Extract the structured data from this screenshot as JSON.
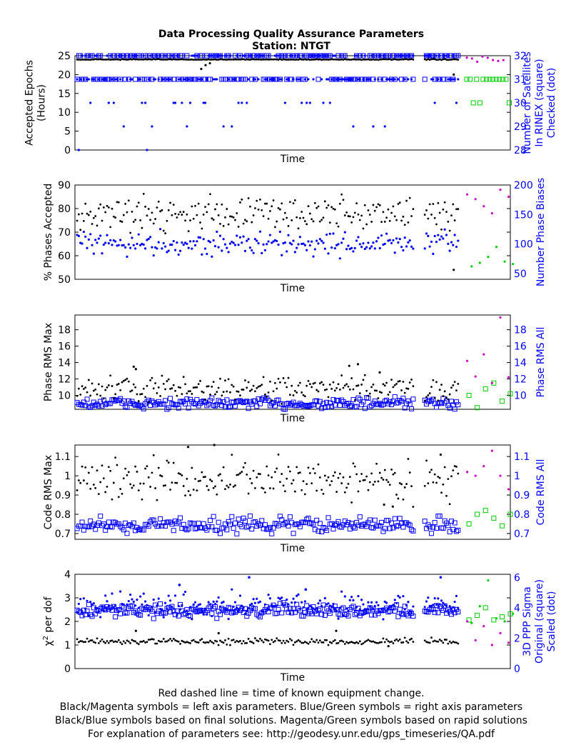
{
  "title": "Data Processing Quality Assurance Parameters",
  "subtitle": "Station: NTGT",
  "footer": [
    "Red dashed line = time of known equipment change.",
    "Black/Magenta symbols = left axis parameters. Blue/Green symbols = right axis parameters",
    "Black/Blue symbols based on final solutions.  Magenta/Green symbols based on rapid solutions",
    "For explanation of parameters see: http://geodesy.unr.edu/gps_timeseries/QA.pdf"
  ],
  "colors": {
    "final_left": "#000000",
    "final_right": "#0000ff",
    "rapid_left": "#cc00cc",
    "rapid_right": "#00cc00"
  },
  "chart_data": [
    {
      "type": "scatter",
      "xlabel": "Time",
      "ylabel": [
        "Accepted Epochs",
        "(Hours)"
      ],
      "ylabel_right": [
        "Number of Satellites",
        "In RINEX (square)",
        "Checked (dot)"
      ],
      "ylim": [
        0,
        25
      ],
      "yticks": [
        0,
        5,
        10,
        15,
        20,
        25
      ],
      "ylim_right": [
        28,
        32
      ],
      "yticks_right": [
        28,
        29,
        30,
        31,
        32
      ],
      "final_end": 0.885,
      "gap": [
        0.78,
        0.8
      ],
      "left": {
        "typical": 24,
        "spread": 0.05,
        "outliers": [
          [
            0.29,
            21.5
          ],
          [
            0.3,
            22.5
          ],
          [
            0.31,
            23.0
          ],
          [
            0.87,
            20.0
          ]
        ]
      },
      "rapid_left": {
        "typical": 24,
        "spread": 0.4
      },
      "right_square": {
        "levels": [
          31,
          32
        ],
        "weights": [
          0.45,
          0.55
        ]
      },
      "right_dot": {
        "levels": [
          28,
          29,
          30,
          31,
          32
        ],
        "weights": [
          0.01,
          0.03,
          0.1,
          0.46,
          0.4
        ]
      },
      "rapid_right_square": {
        "levels": [
          30,
          31
        ],
        "weights": [
          0.25,
          0.75
        ]
      }
    },
    {
      "type": "scatter",
      "xlabel": "Time",
      "ylabel": [
        "% Phases Accepted"
      ],
      "ylabel_right": [
        "Number Phase Biases"
      ],
      "ylim": [
        50,
        90
      ],
      "yticks": [
        50,
        60,
        70,
        80,
        90
      ],
      "ylim_right": [
        40,
        200
      ],
      "yticks_right": [
        50,
        100,
        150,
        200
      ],
      "final_end": 0.885,
      "gap": [
        0.78,
        0.8
      ],
      "left": {
        "typical": 78,
        "spread": 3.5,
        "outliers": [
          [
            0.87,
            54
          ]
        ]
      },
      "rapid_left": {
        "values": [
          86,
          84,
          81,
          78,
          88,
          85
        ]
      },
      "right_dot": {
        "typical": 100,
        "spread": 10
      },
      "rapid_right": {
        "values": [
          62,
          68,
          78,
          95,
          70,
          66
        ]
      }
    },
    {
      "type": "scatter",
      "xlabel": "Time",
      "ylabel": [
        "Phase RMS Max"
      ],
      "ylabel_right": [
        "Phase RMS All"
      ],
      "ylim": [
        8.3,
        19.8
      ],
      "yticks": [
        10,
        12,
        14,
        16,
        18
      ],
      "ylim_right": [
        8.3,
        19.8
      ],
      "yticks_right": [
        10,
        12,
        14,
        16,
        18
      ],
      "final_end": 0.885,
      "gap": [
        0.78,
        0.8
      ],
      "left": {
        "typical": 10.8,
        "spread": 0.7,
        "outliers": [
          [
            0.135,
            13.5
          ],
          [
            0.14,
            13.2
          ],
          [
            0.63,
            13.6
          ],
          [
            0.65,
            13.8
          ],
          [
            0.7,
            12.8
          ]
        ]
      },
      "rapid_left": {
        "values": [
          14.2,
          12.3,
          15.0,
          11.5,
          19.5,
          12.2
        ]
      },
      "right_square": {
        "typical": 9.0,
        "spread": 0.35
      },
      "rapid_right_square": {
        "values": [
          10.0,
          8.5,
          10.8,
          11.5,
          9.3,
          10.2
        ]
      }
    },
    {
      "type": "scatter",
      "xlabel": "Time",
      "ylabel": [
        "Code RMS Max"
      ],
      "ylabel_right": [
        "Code RMS All"
      ],
      "ylim": [
        0.67,
        1.16
      ],
      "yticks": [
        0.7,
        0.8,
        0.9,
        1,
        1.1
      ],
      "ylim_right": [
        0.67,
        1.16
      ],
      "yticks_right": [
        0.7,
        0.8,
        0.9,
        1,
        1.1
      ],
      "final_end": 0.885,
      "gap": [
        0.78,
        0.8
      ],
      "left": {
        "typical": 0.98,
        "spread": 0.05,
        "outliers": [
          [
            0.26,
            1.15
          ],
          [
            0.32,
            1.16
          ],
          [
            0.71,
            0.85
          ],
          [
            0.73,
            0.84
          ],
          [
            0.84,
            1.11
          ]
        ]
      },
      "rapid_left": {
        "values": [
          1.02,
          1.0,
          1.05,
          1.13,
          1.0,
          0.93
        ]
      },
      "right_square": {
        "typical": 0.745,
        "spread": 0.02
      },
      "rapid_right_square": {
        "values": [
          0.75,
          0.8,
          0.82,
          0.78,
          0.74,
          0.8
        ]
      }
    },
    {
      "type": "scatter",
      "xlabel": "Time",
      "ylabel": [
        "χ² per dof"
      ],
      "ylabel_right": [
        "3D PPP Sigma",
        "Original (square)",
        "Scaled (dot)"
      ],
      "ylim": [
        0,
        4
      ],
      "yticks": [
        0,
        1,
        2,
        3,
        4
      ],
      "ylim_right": [
        0,
        6.2
      ],
      "yticks_right": [
        0,
        2,
        4,
        6
      ],
      "final_end": 0.885,
      "gap": [
        0.78,
        0.8
      ],
      "left": {
        "typical": 1.15,
        "spread": 0.06,
        "outliers": [
          [
            0.14,
            1.6
          ],
          [
            0.33,
            1.5
          ],
          [
            0.6,
            1.6
          ],
          [
            0.72,
            0.95
          ]
        ]
      },
      "rapid_left": {
        "values": [
          2.0,
          1.2,
          1.8,
          1.0,
          1.5,
          1.1
        ]
      },
      "right_square": {
        "typical": 3.8,
        "spread": 0.2
      },
      "right_dot": {
        "typical": 4.2,
        "spread": 0.4,
        "outliers": [
          [
            0.24,
            5.5
          ],
          [
            0.4,
            6.0
          ],
          [
            0.53,
            5.2
          ],
          [
            0.84,
            6.0
          ]
        ]
      },
      "rapid_right_square": {
        "values": [
          3.2,
          3.5,
          4.0,
          3.2,
          3.4,
          3.6
        ]
      },
      "rapid_right": {
        "values": [
          3.0,
          4.1,
          5.8,
          3.3,
          3.1,
          3.6
        ]
      }
    }
  ]
}
